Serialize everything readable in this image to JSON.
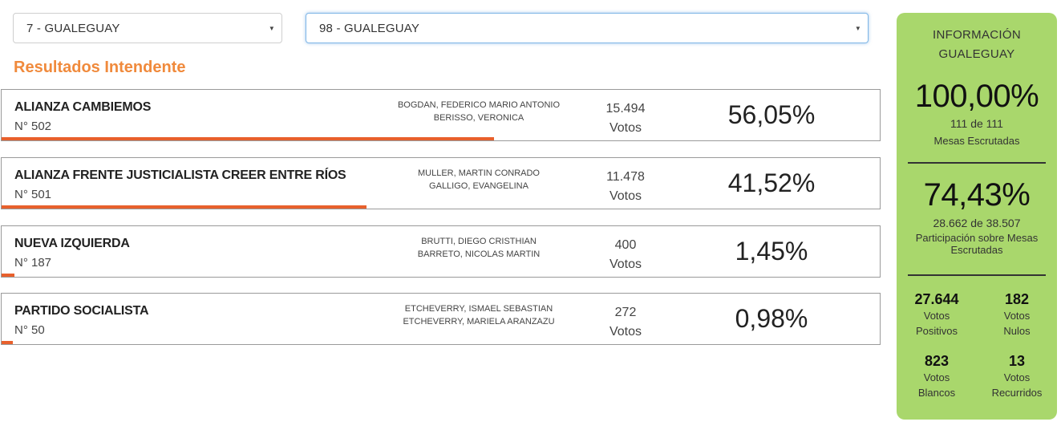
{
  "filters": {
    "department": "7 - GUALEGUAY",
    "municipality": "98 - GUALEGUAY"
  },
  "section_title": "Resultados Intendente",
  "results": [
    {
      "party": "ALIANZA CAMBIEMOS",
      "number": "N° 502",
      "candidate_1": "BOGDAN, FEDERICO MARIO ANTONIO",
      "candidate_2": "BERISSO, VERONICA",
      "votes": "15.494",
      "votes_label": "Votos",
      "percent": "56,05%",
      "percent_value": 56.05
    },
    {
      "party": "ALIANZA FRENTE JUSTICIALISTA CREER ENTRE RÍOS",
      "number": "N° 501",
      "candidate_1": "MULLER, MARTIN CONRADO",
      "candidate_2": "GALLIGO, EVANGELINA",
      "votes": "11.478",
      "votes_label": "Votos",
      "percent": "41,52%",
      "percent_value": 41.52
    },
    {
      "party": "NUEVA IZQUIERDA",
      "number": "N° 187",
      "candidate_1": "BRUTTI, DIEGO CRISTHIAN",
      "candidate_2": "BARRETO, NICOLAS MARTIN",
      "votes": "400",
      "votes_label": "Votos",
      "percent": "1,45%",
      "percent_value": 1.45
    },
    {
      "party": "PARTIDO SOCIALISTA",
      "number": "N° 50",
      "candidate_1": "ETCHEVERRY, ISMAEL SEBASTIAN",
      "candidate_2": "ETCHEVERRY, MARIELA ARANZAZU",
      "votes": "272",
      "votes_label": "Votos",
      "percent": "0,98%",
      "percent_value": 0.98
    }
  ],
  "info": {
    "title_line1": "INFORMACIÓN",
    "title_line2": "GUALEGUAY",
    "mesas_percent": "100,00%",
    "mesas_count": "111 de 111",
    "mesas_label": "Mesas Escrutadas",
    "participation_percent": "74,43%",
    "participation_count": "28.662 de 38.507",
    "participation_label_1": "Participación sobre Mesas",
    "participation_label_2": "Escrutadas",
    "stats": [
      {
        "value": "27.644",
        "label_1": "Votos",
        "label_2": "Positivos"
      },
      {
        "value": "182",
        "label_1": "Votos",
        "label_2": "Nulos"
      },
      {
        "value": "823",
        "label_1": "Votos",
        "label_2": "Blancos"
      },
      {
        "value": "13",
        "label_1": "Votos",
        "label_2": "Recurridos"
      }
    ]
  },
  "colors": {
    "accent_orange": "#f08a3c",
    "bar": "#e8602c",
    "info_panel": "#a9d76c"
  }
}
